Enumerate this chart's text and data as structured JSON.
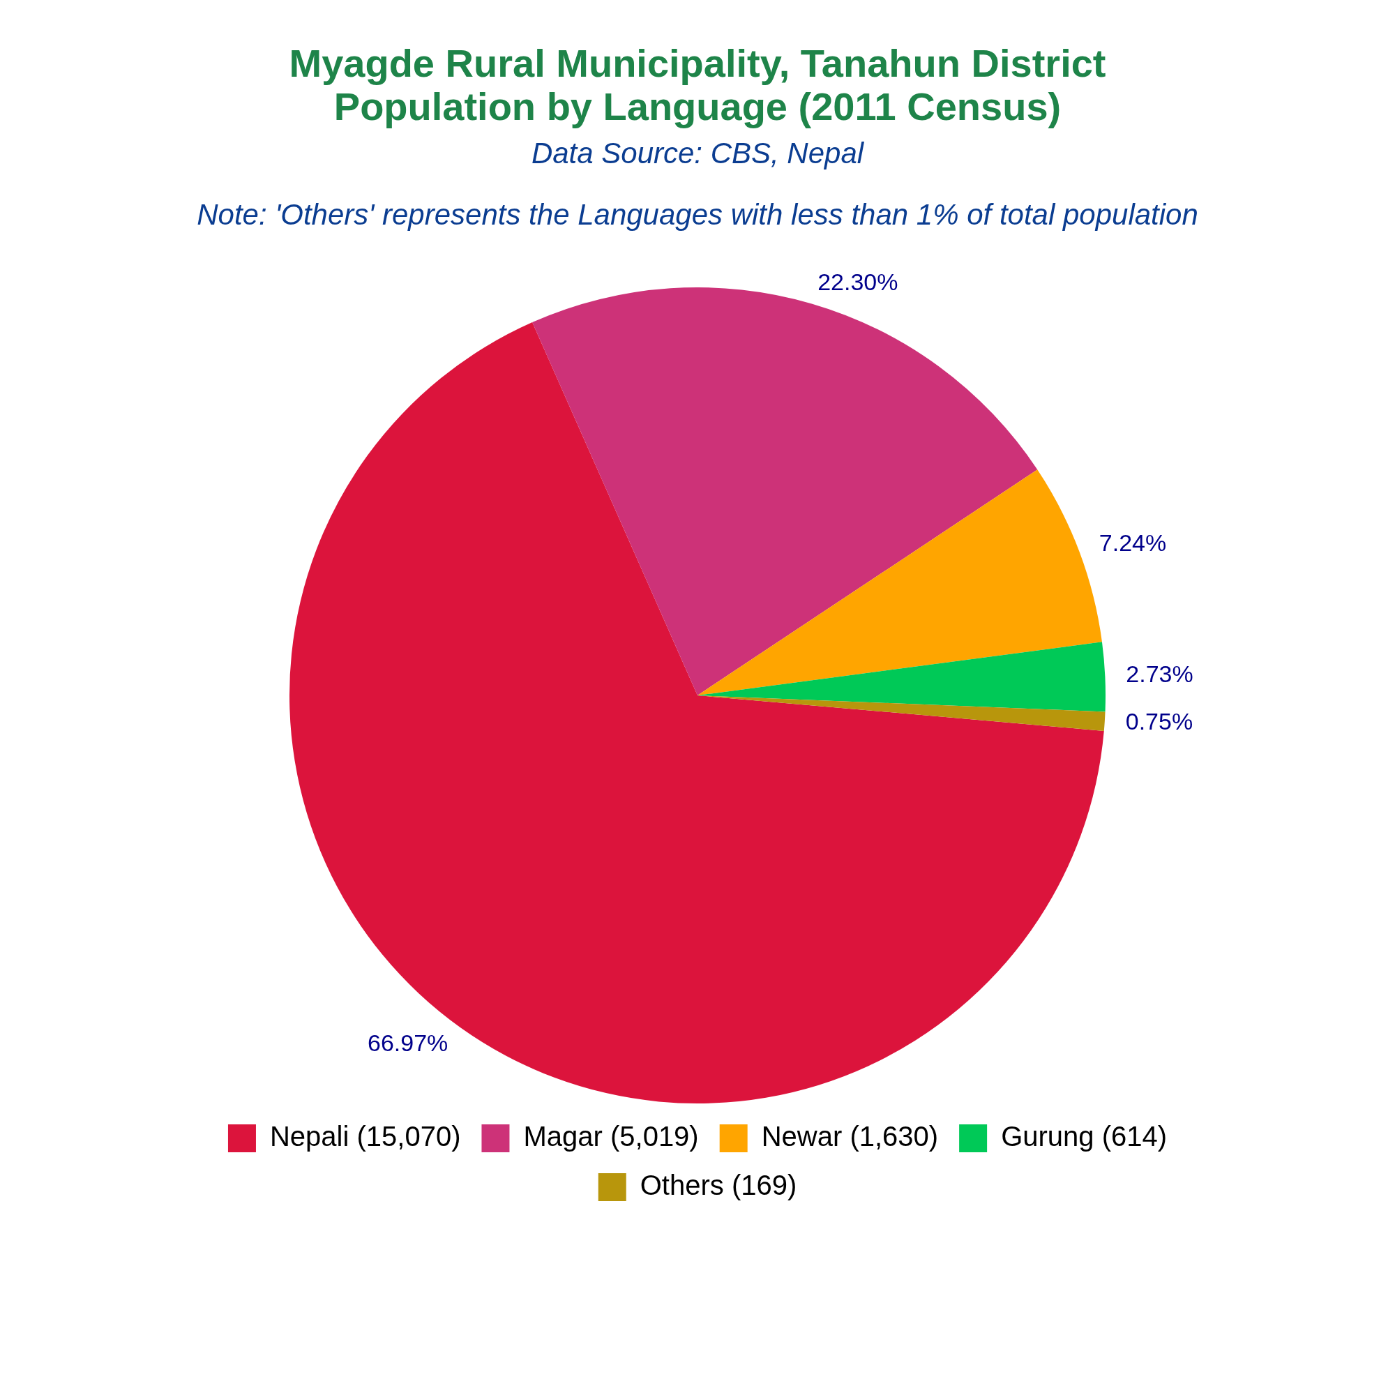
{
  "chart_data": {
    "type": "pie",
    "title": "Myagde Rural Municipality, Tanahun District\nPopulation by Language (2011 Census)",
    "subtitle": "Data Source: CBS, Nepal",
    "annotations": [
      "Note: 'Others' represents the Languages with less than 1% of total population"
    ],
    "categories": [
      "Nepali (15,070)",
      "Magar (5,019)",
      "Newar (1,630)",
      "Gurung (614)",
      "Others (169)"
    ],
    "values": [
      66.97,
      22.3,
      7.24,
      2.73,
      0.75
    ],
    "value_labels": [
      "66.97%",
      "22.30%",
      "7.24%",
      "2.73%",
      "0.75%"
    ],
    "colors": [
      "#dc143c",
      "#cd3278",
      "#ffa500",
      "#00c957",
      "#b8960c"
    ],
    "legend": "bottom"
  }
}
